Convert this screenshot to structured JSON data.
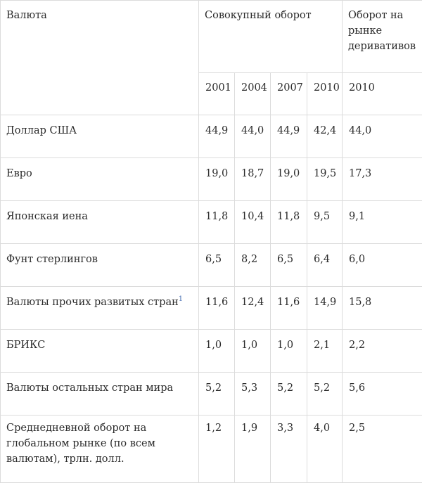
{
  "table": {
    "headers": {
      "currency": "Валюта",
      "total_turnover": "Совокупный оборот",
      "derivatives_turnover": "Оборот на рынке деривативов"
    },
    "years": [
      "2001",
      "2004",
      "2007",
      "2010",
      "2010"
    ],
    "rows": [
      {
        "label": "Доллар США",
        "note": "",
        "values": [
          "44,9",
          "44,0",
          "44,9",
          "42,4",
          "44,0"
        ]
      },
      {
        "label": "Евро",
        "note": "",
        "values": [
          "19,0",
          "18,7",
          "19,0",
          "19,5",
          "17,3"
        ]
      },
      {
        "label": "Японская иена",
        "note": "",
        "values": [
          "11,8",
          "10,4",
          "11,8",
          "9,5",
          "9,1"
        ]
      },
      {
        "label": "Фунт стерлингов",
        "note": "",
        "values": [
          "6,5",
          "8,2",
          "6,5",
          "6,4",
          "6,0"
        ]
      },
      {
        "label": "Валюты прочих развитых стран",
        "note": "1",
        "values": [
          "11,6",
          "12,4",
          "11,6",
          "14,9",
          "15,8"
        ]
      },
      {
        "label": "БРИКС",
        "note": "",
        "values": [
          "1,0",
          "1,0",
          "1,0",
          "2,1",
          "2,2"
        ]
      },
      {
        "label": "Валюты остальных стран мира",
        "note": "",
        "values": [
          "5,2",
          "5,3",
          "5,2",
          "5,2",
          "5,6"
        ]
      },
      {
        "label": "Среднедневной оборот на глобальном рынке (по всем валютам), трлн. долл.",
        "note": "",
        "values": [
          "1,2",
          "1,9",
          "3,3",
          "4,0",
          "2,5"
        ]
      }
    ]
  }
}
